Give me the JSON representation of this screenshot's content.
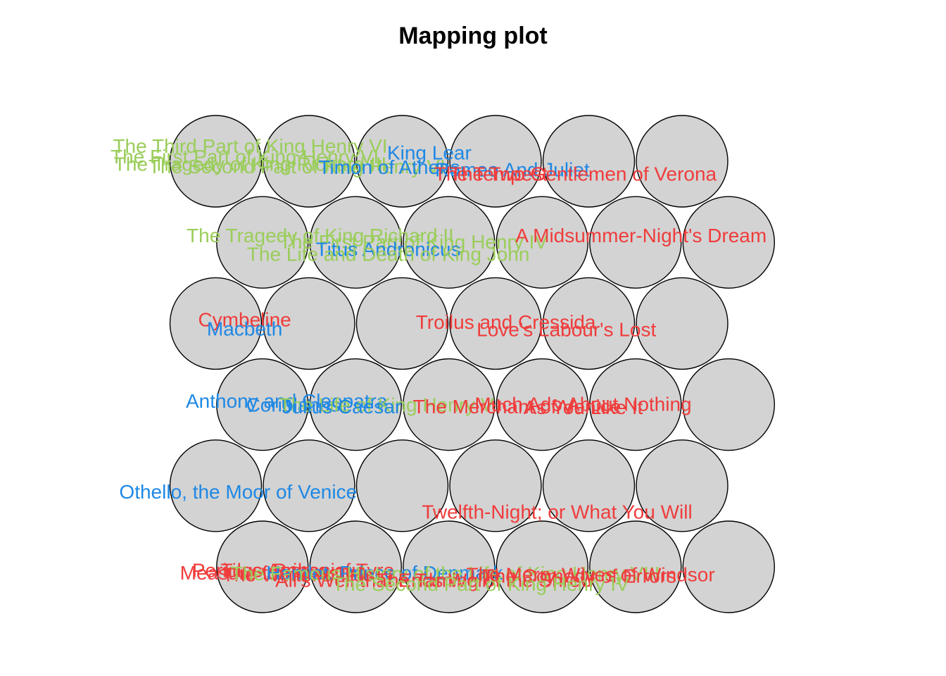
{
  "chart_data": {
    "type": "scatter",
    "title": "Mapping plot",
    "grid": false,
    "legend": "none",
    "colors": {
      "background": "#ffffff",
      "cell_fill": "#d3d3d3",
      "cell_stroke": "#000000",
      "green": "#9ACD5A",
      "blue": "#1E88E5",
      "red": "#F03C3C"
    },
    "map": {
      "cols": 6,
      "rows": 6,
      "topology": "hexagonal",
      "cells": [
        {
          "row": 1,
          "col": 1
        },
        {
          "row": 1,
          "col": 2
        },
        {
          "row": 1,
          "col": 3
        },
        {
          "row": 1,
          "col": 4
        },
        {
          "row": 1,
          "col": 5
        },
        {
          "row": 1,
          "col": 6
        },
        {
          "row": 2,
          "col": 1
        },
        {
          "row": 2,
          "col": 2
        },
        {
          "row": 2,
          "col": 3
        },
        {
          "row": 2,
          "col": 4
        },
        {
          "row": 2,
          "col": 5
        },
        {
          "row": 2,
          "col": 6
        },
        {
          "row": 3,
          "col": 1
        },
        {
          "row": 3,
          "col": 2
        },
        {
          "row": 3,
          "col": 3
        },
        {
          "row": 3,
          "col": 4
        },
        {
          "row": 3,
          "col": 5
        },
        {
          "row": 3,
          "col": 6
        },
        {
          "row": 4,
          "col": 1
        },
        {
          "row": 4,
          "col": 2
        },
        {
          "row": 4,
          "col": 3
        },
        {
          "row": 4,
          "col": 4
        },
        {
          "row": 4,
          "col": 5
        },
        {
          "row": 4,
          "col": 6
        },
        {
          "row": 5,
          "col": 1
        },
        {
          "row": 5,
          "col": 2
        },
        {
          "row": 5,
          "col": 3
        },
        {
          "row": 5,
          "col": 4
        },
        {
          "row": 5,
          "col": 5
        },
        {
          "row": 5,
          "col": 6
        },
        {
          "row": 6,
          "col": 1
        },
        {
          "row": 6,
          "col": 2
        },
        {
          "row": 6,
          "col": 3
        },
        {
          "row": 6,
          "col": 4
        },
        {
          "row": 6,
          "col": 5
        },
        {
          "row": 6,
          "col": 6
        }
      ]
    },
    "points": [
      {
        "label": "The Third Part of King Henry VI",
        "color": "green",
        "x": 0.37,
        "y": 6.19
      },
      {
        "label": "The First Part of King Henry VI",
        "color": "green",
        "x": 0.31,
        "y": 6.06
      },
      {
        "label": "The Tragedy of King Richard III",
        "color": "green",
        "x": 0.37,
        "y": 5.97
      },
      {
        "label": "The Second Part of King Henry VI",
        "color": "green",
        "x": 0.87,
        "y": 5.94
      },
      {
        "label": "King Lear",
        "color": "blue",
        "x": 2.29,
        "y": 6.11
      },
      {
        "label": "Timon of Athens",
        "color": "blue",
        "x": 1.86,
        "y": 5.93
      },
      {
        "label": "Romeo And Juliet",
        "color": "blue",
        "x": 3.18,
        "y": 5.9
      },
      {
        "label": "The Tempest",
        "color": "red",
        "x": 2.95,
        "y": 5.85
      },
      {
        "label": "The Two Gentlemen of Verona",
        "color": "red",
        "x": 3.94,
        "y": 5.85
      },
      {
        "label": "The Tragedy of King Richard II",
        "color": "green",
        "x": 1.12,
        "y": 5.09
      },
      {
        "label": "The First Part of King Henry IV",
        "color": "green",
        "x": 2.12,
        "y": 5.01
      },
      {
        "label": "A Midsummer-Night's Dream",
        "color": "red",
        "x": 4.56,
        "y": 5.09
      },
      {
        "label": "Titus Andronicus",
        "color": "blue",
        "x": 1.85,
        "y": 4.92
      },
      {
        "label": "The Life and Death of King John",
        "color": "green",
        "x": 1.85,
        "y": 4.86
      },
      {
        "label": "Cymbeline",
        "color": "red",
        "x": 0.31,
        "y": 4.05
      },
      {
        "label": "Macbeth",
        "color": "blue",
        "x": 0.31,
        "y": 3.94
      },
      {
        "label": "Troilus and Cressida",
        "color": "red",
        "x": 3.11,
        "y": 4.02
      },
      {
        "label": "Love's Labour's Lost",
        "color": "red",
        "x": 3.76,
        "y": 3.93
      },
      {
        "label": "Anthony and Cleopatra",
        "color": "blue",
        "x": 0.76,
        "y": 3.05
      },
      {
        "label": "Coriolanus",
        "color": "blue",
        "x": 0.83,
        "y": 3.0
      },
      {
        "label": "The Life of King Henry V",
        "color": "green",
        "x": 1.83,
        "y": 3.0
      },
      {
        "label": "Julius Caesar",
        "color": "blue",
        "x": 1.35,
        "y": 2.98
      },
      {
        "label": "The Merchant of Venice",
        "color": "red",
        "x": 3.23,
        "y": 2.98
      },
      {
        "label": "Much Ado About Nothing",
        "color": "red",
        "x": 3.94,
        "y": 3.01
      },
      {
        "label": "As You Like It",
        "color": "red",
        "x": 3.94,
        "y": 2.97
      },
      {
        "label": "Othello, the Moor of Venice",
        "color": "blue",
        "x": 0.24,
        "y": 1.93
      },
      {
        "label": "Twelfth-Night; or What You Will",
        "color": "red",
        "x": 3.66,
        "y": 1.68
      },
      {
        "label": "Pericles, Prince of Tyre",
        "color": "red",
        "x": 0.83,
        "y": 0.96
      },
      {
        "label": "Titus Andronicus",
        "color": "red",
        "x": 0.83,
        "y": 0.96
      },
      {
        "label": "Measure for Measure",
        "color": "red",
        "x": 0.62,
        "y": 0.93
      },
      {
        "label": "The Winter's Tale",
        "color": "red",
        "x": 0.88,
        "y": 0.91
      },
      {
        "label": "Hamlet, Prince of Denmark",
        "color": "blue",
        "x": 1.81,
        "y": 0.93
      },
      {
        "label": "The Famous History of the Life of King Henry VIII",
        "color": "green",
        "x": 2.46,
        "y": 0.92
      },
      {
        "label": "All's Well that Ends Well",
        "color": "red",
        "x": 1.77,
        "y": 0.84
      },
      {
        "label": "The Taming of the Shrew",
        "color": "red",
        "x": 2.89,
        "y": 0.84
      },
      {
        "label": "The Merry Wives of Windsor",
        "color": "red",
        "x": 4.02,
        "y": 0.91
      },
      {
        "label": "The Comedy of Errors",
        "color": "red",
        "x": 3.9,
        "y": 0.89
      },
      {
        "label": "The Second Part of King Henry IV",
        "color": "green",
        "x": 2.84,
        "y": 0.79
      }
    ]
  }
}
